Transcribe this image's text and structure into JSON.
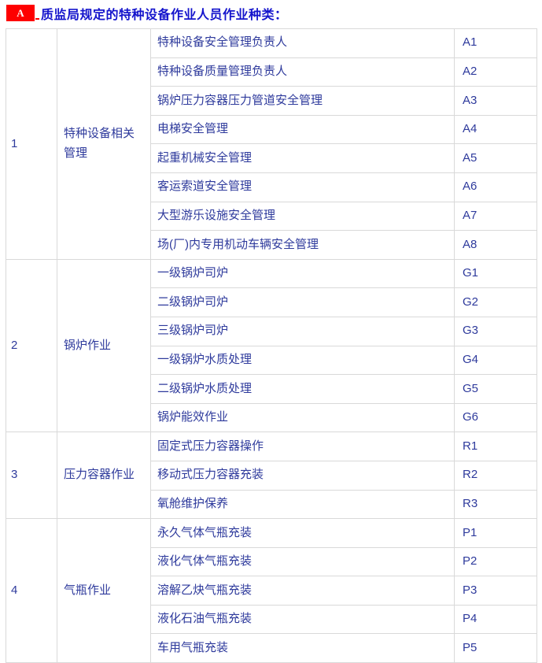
{
  "header": {
    "badge": "A",
    "title": "质监局规定的特种设备作业人员作业种类："
  },
  "colors": {
    "accent_red": "#fe0000",
    "title_blue": "#1414cc",
    "cell_blue": "#2e3a9c",
    "border_gray": "#d9d9d9"
  },
  "table": {
    "groups": [
      {
        "no": "1",
        "category": "特种设备相关管理",
        "items": [
          {
            "name": "特种设备安全管理负责人",
            "code": "A1"
          },
          {
            "name": "特种设备质量管理负责人",
            "code": "A2"
          },
          {
            "name": "锅炉压力容器压力管道安全管理",
            "code": "A3"
          },
          {
            "name": "电梯安全管理",
            "code": "A4"
          },
          {
            "name": "起重机械安全管理",
            "code": "A5"
          },
          {
            "name": "客运索道安全管理",
            "code": "A6"
          },
          {
            "name": "大型游乐设施安全管理",
            "code": "A7"
          },
          {
            "name": "场(厂)内专用机动车辆安全管理",
            "code": "A8"
          }
        ]
      },
      {
        "no": "2",
        "category": "锅炉作业",
        "items": [
          {
            "name": "一级锅炉司炉",
            "code": "G1"
          },
          {
            "name": "二级锅炉司炉",
            "code": "G2"
          },
          {
            "name": "三级锅炉司炉",
            "code": "G3"
          },
          {
            "name": "一级锅炉水质处理",
            "code": "G4"
          },
          {
            "name": "二级锅炉水质处理",
            "code": "G5"
          },
          {
            "name": "锅炉能效作业",
            "code": "G6"
          }
        ]
      },
      {
        "no": "3",
        "category": "压力容器作业",
        "items": [
          {
            "name": "固定式压力容器操作",
            "code": "R1"
          },
          {
            "name": "移动式压力容器充装",
            "code": "R2"
          },
          {
            "name": "氧舱维护保养",
            "code": "R3"
          }
        ]
      },
      {
        "no": "4",
        "category": "气瓶作业",
        "items": [
          {
            "name": "永久气体气瓶充装",
            "code": "P1"
          },
          {
            "name": "液化气体气瓶充装",
            "code": "P2"
          },
          {
            "name": "溶解乙炔气瓶充装",
            "code": "P3"
          },
          {
            "name": "液化石油气瓶充装",
            "code": "P4"
          },
          {
            "name": "车用气瓶充装",
            "code": "P5"
          }
        ]
      }
    ]
  }
}
